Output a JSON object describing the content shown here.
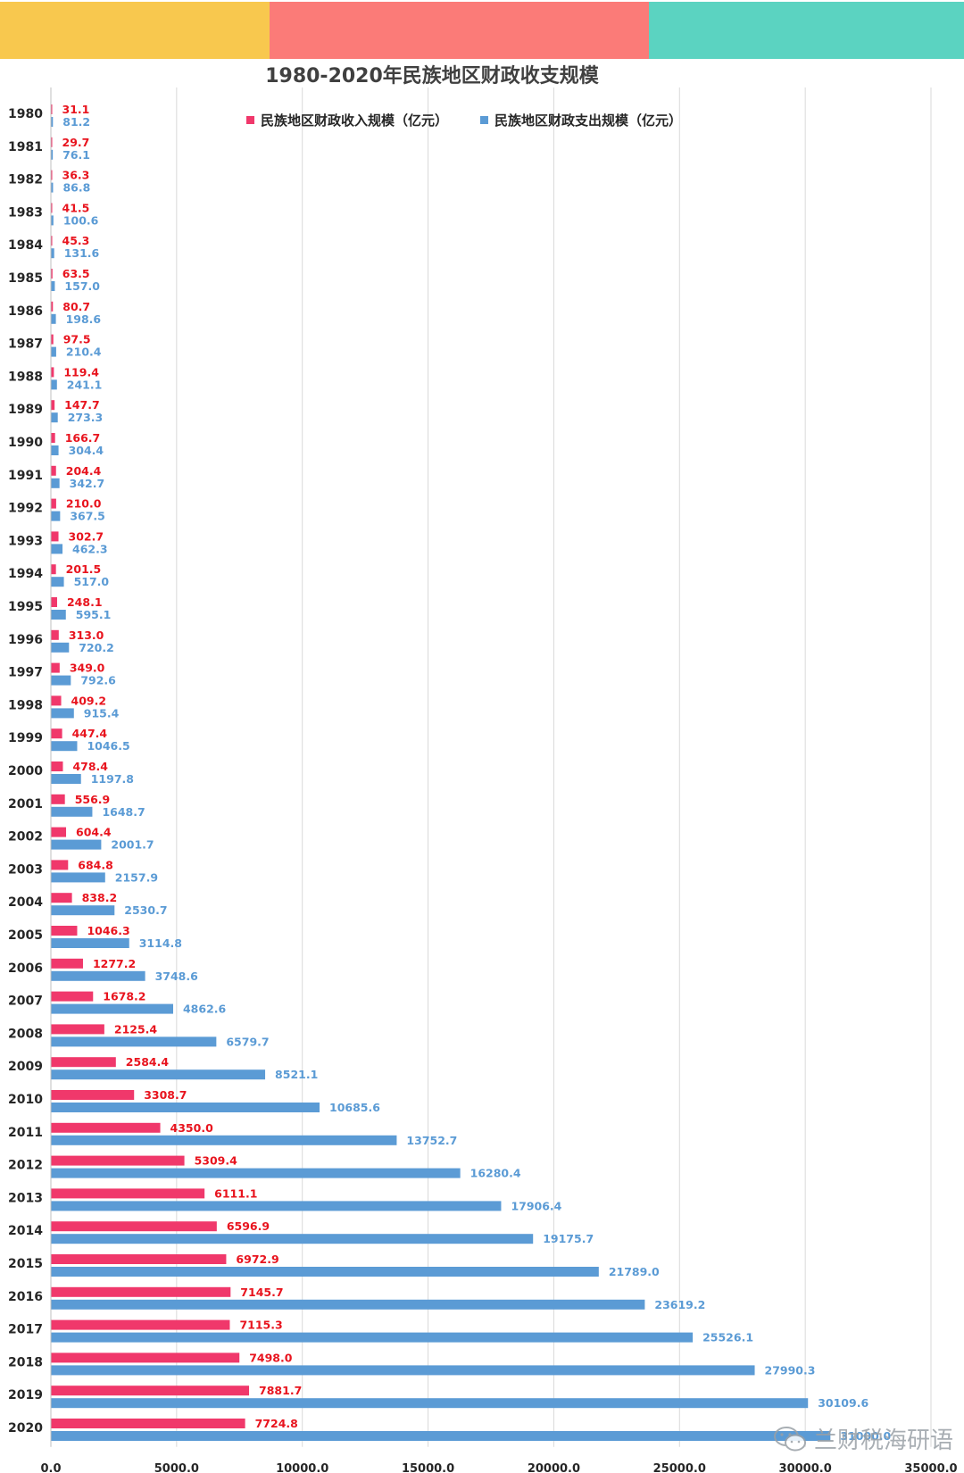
{
  "banner": {
    "colors": [
      "#F8C84E",
      "#FB7B78",
      "#5BD3C1"
    ]
  },
  "watermark": {
    "text": "兰财税海研语",
    "icon": "wechat-icon"
  },
  "chart_data": {
    "type": "bar",
    "orientation": "horizontal",
    "title": "1980-2020年民族地区财政收支规模",
    "categories": [
      "1980",
      "1981",
      "1982",
      "1983",
      "1984",
      "1985",
      "1986",
      "1987",
      "1988",
      "1989",
      "1990",
      "1991",
      "1992",
      "1993",
      "1994",
      "1995",
      "1996",
      "1997",
      "1998",
      "1999",
      "2000",
      "2001",
      "2002",
      "2003",
      "2004",
      "2005",
      "2006",
      "2007",
      "2008",
      "2009",
      "2010",
      "2011",
      "2012",
      "2013",
      "2014",
      "2015",
      "2016",
      "2017",
      "2018",
      "2019",
      "2020"
    ],
    "series": [
      {
        "name": "民族地区财政收入规模（亿元）",
        "color": "#F0386B",
        "label_color": "#E8141E",
        "values": [
          31.1,
          29.7,
          36.3,
          41.5,
          45.3,
          63.5,
          80.7,
          97.5,
          119.4,
          147.7,
          166.7,
          204.4,
          210.0,
          302.7,
          201.5,
          248.1,
          313.0,
          349.0,
          409.2,
          447.4,
          478.4,
          556.9,
          604.4,
          684.8,
          838.2,
          1046.3,
          1277.2,
          1678.2,
          2125.4,
          2584.4,
          3308.7,
          4350.0,
          5309.4,
          6111.1,
          6596.9,
          6972.9,
          7145.7,
          7115.3,
          7498.0,
          7881.7,
          7724.8
        ]
      },
      {
        "name": "民族地区财政支出规模（亿元）",
        "color": "#5B9BD5",
        "label_color": "#5B9BD5",
        "values": [
          81.2,
          76.1,
          86.8,
          100.6,
          131.6,
          157.0,
          198.6,
          210.4,
          241.1,
          273.3,
          304.4,
          342.7,
          367.5,
          462.3,
          517.0,
          595.1,
          720.2,
          792.6,
          915.4,
          1046.5,
          1197.8,
          1648.7,
          2001.7,
          2157.9,
          2530.7,
          3114.8,
          3748.6,
          4862.6,
          6579.7,
          8521.1,
          10685.6,
          13752.7,
          16280.4,
          17906.4,
          19175.7,
          21789.0,
          23619.2,
          25526.1,
          27990.3,
          30109.6,
          31000.0
        ]
      }
    ],
    "xlim": [
      0,
      35000
    ],
    "xticks": [
      0,
      5000,
      10000,
      15000,
      20000,
      25000,
      30000,
      35000
    ],
    "xtick_labels": [
      "0.0",
      "5000.0",
      "10000.0",
      "15000.0",
      "20000.0",
      "25000.0",
      "30000.0",
      "35000.0"
    ],
    "grid": true,
    "legend": "top-center"
  }
}
